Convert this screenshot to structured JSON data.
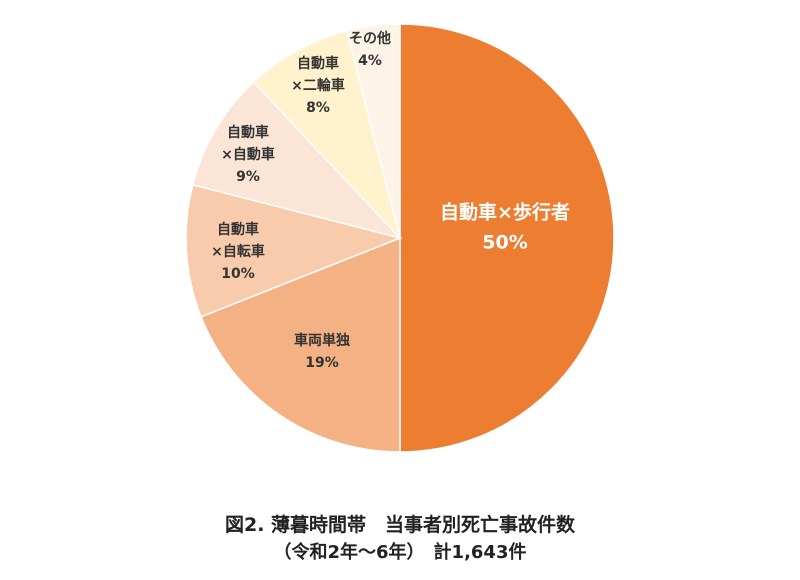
{
  "chart_data": {
    "type": "pie",
    "title": "図2. 薄暮時間帯　当事者別死亡事故件数",
    "subtitle": "（令和2年～6年）　計1,643件",
    "start": "12 o'clock",
    "direction": "clockwise",
    "slices": [
      {
        "label_lines": [
          "自動車×歩行者"
        ],
        "value_label": "50%",
        "value": 50,
        "color": "#ED7D31"
      },
      {
        "label_lines": [
          "車両単独"
        ],
        "value_label": "19%",
        "value": 19,
        "color": "#F4B183"
      },
      {
        "label_lines": [
          "自動車",
          "×自転車"
        ],
        "value_label": "10%",
        "value": 10,
        "color": "#F8CBAD"
      },
      {
        "label_lines": [
          "自動車",
          "×自動車"
        ],
        "value_label": "9%",
        "value": 9,
        "color": "#FBE5D6"
      },
      {
        "label_lines": [
          "自動車",
          "×二輪車"
        ],
        "value_label": "8%",
        "value": 8,
        "color": "#FFF2CC"
      },
      {
        "label_lines": [
          "その他"
        ],
        "value_label": "4%",
        "value": 4,
        "color": "#FDF3E6"
      }
    ]
  }
}
